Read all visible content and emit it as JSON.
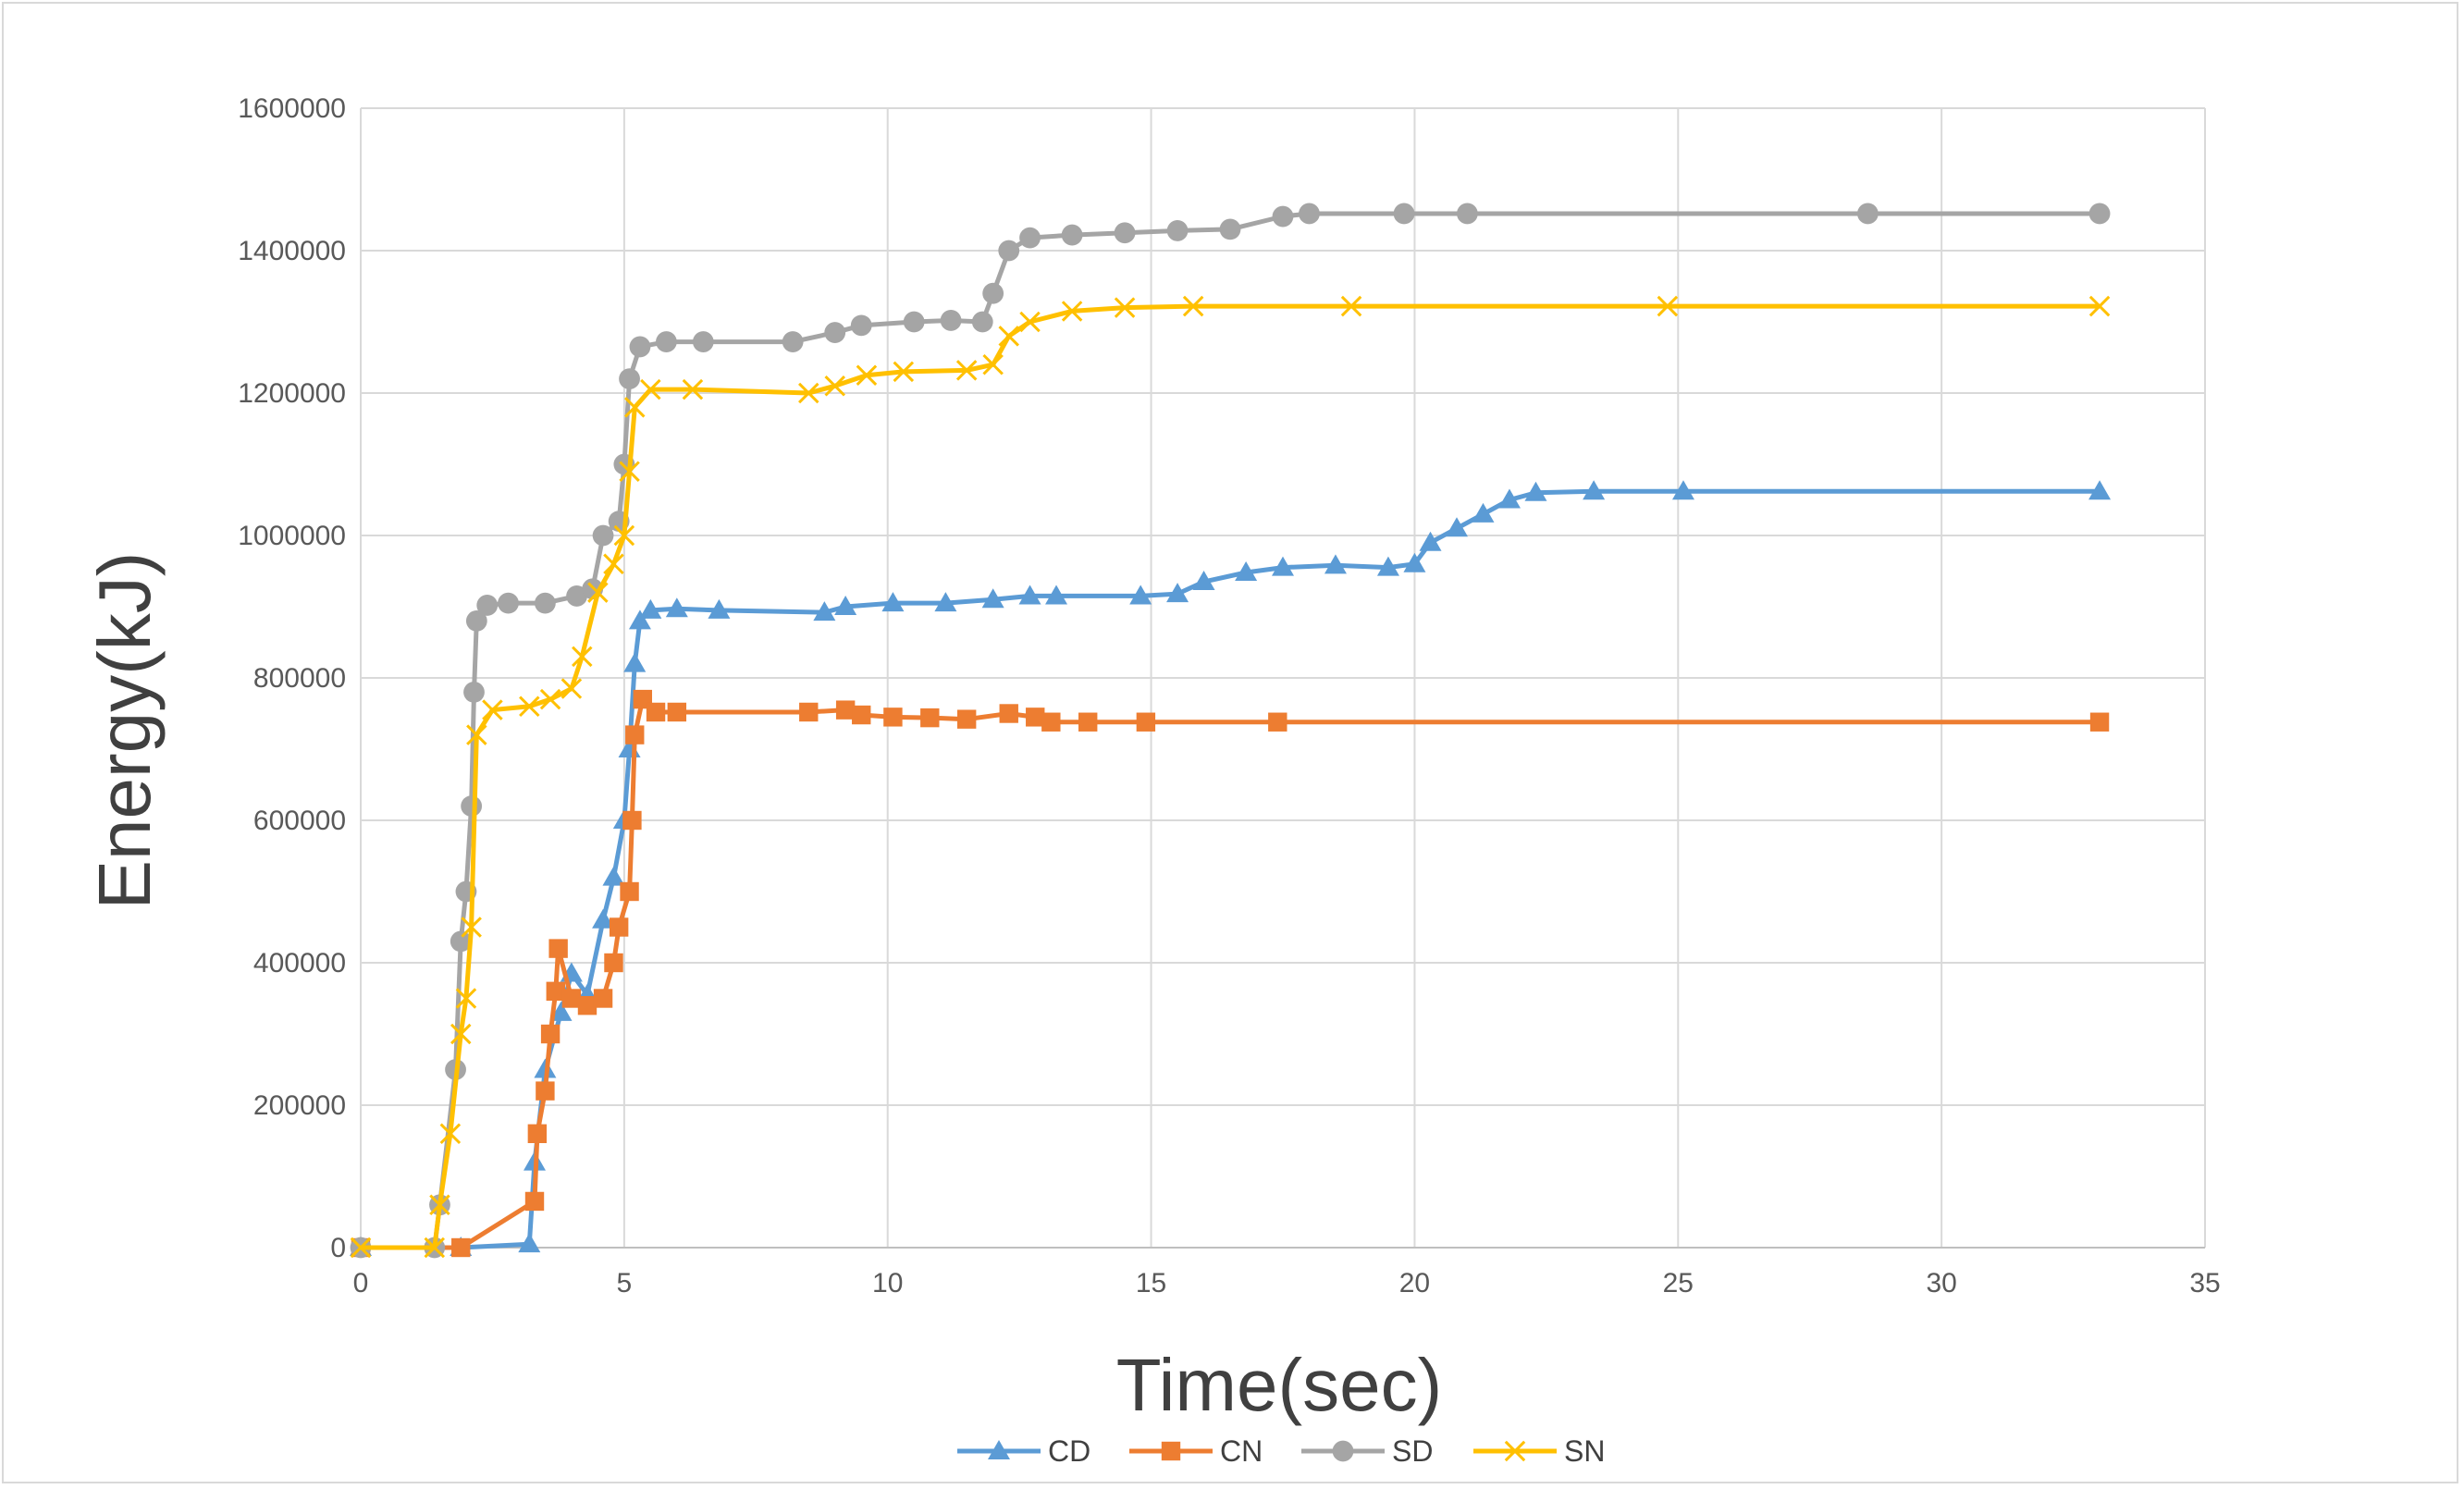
{
  "chart_data": {
    "type": "line",
    "title": "",
    "xlabel": "Time(sec)",
    "ylabel": "Energy(kJ)",
    "xlim": [
      0,
      35
    ],
    "ylim": [
      0,
      1600000
    ],
    "x_ticks": [
      0,
      5,
      10,
      15,
      20,
      25,
      30,
      35
    ],
    "y_ticks": [
      0,
      200000,
      400000,
      600000,
      800000,
      1000000,
      1200000,
      1400000,
      1600000
    ],
    "grid": true,
    "legend_position": "bottom",
    "series": [
      {
        "name": "CD",
        "color": "#5b9bd5",
        "marker": "triangle",
        "points": [
          [
            0,
            0
          ],
          [
            1.9,
            0
          ],
          [
            3.2,
            5000
          ],
          [
            3.3,
            120000
          ],
          [
            3.5,
            250000
          ],
          [
            3.8,
            330000
          ],
          [
            4.0,
            385000
          ],
          [
            4.3,
            355000
          ],
          [
            4.6,
            460000
          ],
          [
            4.8,
            520000
          ],
          [
            5.0,
            600000
          ],
          [
            5.1,
            700000
          ],
          [
            5.2,
            820000
          ],
          [
            5.3,
            880000
          ],
          [
            5.5,
            895000
          ],
          [
            6.0,
            897000
          ],
          [
            6.8,
            895000
          ],
          [
            8.8,
            892000
          ],
          [
            9.2,
            900000
          ],
          [
            10.1,
            905000
          ],
          [
            11.1,
            905000
          ],
          [
            12.0,
            910000
          ],
          [
            12.7,
            915000
          ],
          [
            13.2,
            915000
          ],
          [
            14.8,
            915000
          ],
          [
            15.5,
            918000
          ],
          [
            16.0,
            935000
          ],
          [
            16.8,
            948000
          ],
          [
            17.5,
            955000
          ],
          [
            18.5,
            958000
          ],
          [
            19.5,
            955000
          ],
          [
            20.0,
            960000
          ],
          [
            20.3,
            990000
          ],
          [
            20.8,
            1010000
          ],
          [
            21.3,
            1030000
          ],
          [
            21.8,
            1050000
          ],
          [
            22.3,
            1060000
          ],
          [
            23.4,
            1062000
          ],
          [
            25.1,
            1062000
          ],
          [
            33.0,
            1062000
          ]
        ]
      },
      {
        "name": "CN",
        "color": "#ed7d31",
        "marker": "square",
        "points": [
          [
            0,
            0
          ],
          [
            1.9,
            0
          ],
          [
            3.3,
            65000
          ],
          [
            3.35,
            160000
          ],
          [
            3.5,
            220000
          ],
          [
            3.6,
            300000
          ],
          [
            3.7,
            360000
          ],
          [
            3.75,
            420000
          ],
          [
            4.0,
            350000
          ],
          [
            4.3,
            340000
          ],
          [
            4.6,
            350000
          ],
          [
            4.8,
            400000
          ],
          [
            4.9,
            450000
          ],
          [
            5.1,
            500000
          ],
          [
            5.15,
            600000
          ],
          [
            5.2,
            720000
          ],
          [
            5.35,
            770000
          ],
          [
            5.6,
            752000
          ],
          [
            6.0,
            752000
          ],
          [
            8.5,
            752000
          ],
          [
            9.2,
            755000
          ],
          [
            9.5,
            748000
          ],
          [
            10.1,
            745000
          ],
          [
            10.8,
            744000
          ],
          [
            11.5,
            742000
          ],
          [
            12.3,
            750000
          ],
          [
            12.8,
            745000
          ],
          [
            13.1,
            738000
          ],
          [
            13.8,
            738000
          ],
          [
            14.9,
            738000
          ],
          [
            17.4,
            738000
          ],
          [
            33.0,
            738000
          ]
        ]
      },
      {
        "name": "SD",
        "color": "#a5a5a5",
        "marker": "circle",
        "points": [
          [
            0,
            0
          ],
          [
            1.4,
            0
          ],
          [
            1.5,
            60000
          ],
          [
            1.8,
            250000
          ],
          [
            1.9,
            430000
          ],
          [
            2.0,
            500000
          ],
          [
            2.1,
            620000
          ],
          [
            2.15,
            780000
          ],
          [
            2.2,
            880000
          ],
          [
            2.4,
            902000
          ],
          [
            2.8,
            905000
          ],
          [
            3.5,
            905000
          ],
          [
            4.1,
            915000
          ],
          [
            4.4,
            925000
          ],
          [
            4.6,
            1000000
          ],
          [
            4.9,
            1020000
          ],
          [
            5.0,
            1100000
          ],
          [
            5.1,
            1220000
          ],
          [
            5.3,
            1265000
          ],
          [
            5.8,
            1272000
          ],
          [
            6.5,
            1272000
          ],
          [
            8.2,
            1272000
          ],
          [
            9.0,
            1285000
          ],
          [
            9.5,
            1295000
          ],
          [
            10.5,
            1300000
          ],
          [
            11.2,
            1302000
          ],
          [
            11.8,
            1300000
          ],
          [
            12.0,
            1340000
          ],
          [
            12.3,
            1400000
          ],
          [
            12.7,
            1418000
          ],
          [
            13.5,
            1422000
          ],
          [
            14.5,
            1425000
          ],
          [
            15.5,
            1428000
          ],
          [
            16.5,
            1430000
          ],
          [
            17.5,
            1448000
          ],
          [
            18.0,
            1452000
          ],
          [
            19.8,
            1452000
          ],
          [
            21.0,
            1452000
          ],
          [
            28.6,
            1452000
          ],
          [
            33.0,
            1452000
          ]
        ]
      },
      {
        "name": "SN",
        "color": "#ffc000",
        "marker": "x",
        "points": [
          [
            0,
            0
          ],
          [
            1.4,
            0
          ],
          [
            1.5,
            60000
          ],
          [
            1.7,
            160000
          ],
          [
            1.9,
            300000
          ],
          [
            2.0,
            350000
          ],
          [
            2.1,
            450000
          ],
          [
            2.2,
            720000
          ],
          [
            2.5,
            755000
          ],
          [
            3.2,
            760000
          ],
          [
            3.6,
            770000
          ],
          [
            4.0,
            785000
          ],
          [
            4.2,
            830000
          ],
          [
            4.5,
            920000
          ],
          [
            4.8,
            960000
          ],
          [
            5.0,
            1000000
          ],
          [
            5.1,
            1090000
          ],
          [
            5.2,
            1180000
          ],
          [
            5.5,
            1205000
          ],
          [
            6.3,
            1205000
          ],
          [
            8.5,
            1200000
          ],
          [
            9.0,
            1210000
          ],
          [
            9.6,
            1225000
          ],
          [
            10.3,
            1230000
          ],
          [
            11.5,
            1232000
          ],
          [
            12.0,
            1240000
          ],
          [
            12.3,
            1280000
          ],
          [
            12.7,
            1300000
          ],
          [
            13.5,
            1315000
          ],
          [
            14.5,
            1320000
          ],
          [
            15.8,
            1322000
          ],
          [
            18.8,
            1322000
          ],
          [
            24.8,
            1322000
          ],
          [
            33.0,
            1322000
          ]
        ]
      }
    ]
  }
}
